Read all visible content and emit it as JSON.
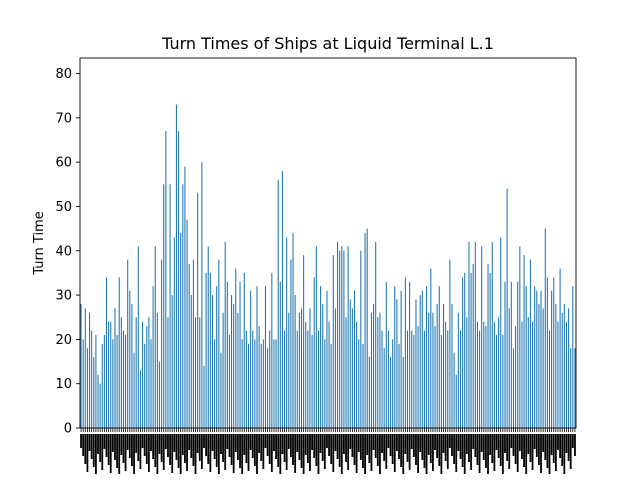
{
  "chart_data": {
    "type": "bar",
    "title": "Turn Times of Ships at Liquid Terminal L.1",
    "xlabel": "",
    "ylabel": "Turn Time",
    "ylim": [
      0,
      83.5
    ],
    "yticks": [
      0,
      10,
      20,
      30,
      40,
      50,
      60,
      70,
      80
    ],
    "grid": false,
    "legend": "none",
    "bar_color": "#1f77b4",
    "values": [
      28,
      20,
      27,
      18,
      26,
      22,
      16,
      21,
      12,
      10,
      19,
      21,
      34,
      24,
      24,
      20,
      27,
      21,
      34,
      25,
      22,
      21,
      38,
      31,
      28,
      17,
      25,
      41,
      13,
      24,
      19,
      23,
      25,
      20,
      32,
      41,
      26,
      15,
      38,
      55,
      67,
      25,
      55,
      30,
      43,
      73,
      67,
      44,
      55,
      59,
      47,
      37,
      30,
      38,
      25,
      53,
      25,
      60,
      14,
      35,
      41,
      35,
      30,
      20,
      32,
      38,
      17,
      26,
      42,
      33,
      21,
      30,
      28,
      36,
      26,
      33,
      20,
      35,
      22,
      19,
      31,
      22,
      20,
      32,
      23,
      19,
      20,
      32,
      18,
      22,
      35,
      20,
      20,
      56,
      33,
      58,
      22,
      43,
      26,
      38,
      44,
      30,
      22,
      26,
      27,
      39,
      24,
      22,
      27,
      21,
      34,
      41,
      22,
      32,
      28,
      20,
      31,
      24,
      19,
      39,
      27,
      42,
      40,
      41,
      40,
      25,
      41,
      29,
      27,
      31,
      24,
      20,
      40,
      19,
      44,
      45,
      16,
      26,
      28,
      42,
      25,
      26,
      22,
      18,
      33,
      22,
      16,
      20,
      32,
      29,
      19,
      31,
      16,
      34,
      22,
      33,
      22,
      21,
      29,
      23,
      30,
      31,
      22,
      32,
      26,
      36,
      26,
      23,
      28,
      32,
      21,
      28,
      24,
      22,
      38,
      28,
      17,
      12,
      26,
      22,
      34,
      35,
      25,
      42,
      35,
      37,
      42,
      24,
      22,
      41,
      24,
      23,
      37,
      35,
      42,
      24,
      21,
      25,
      43,
      21,
      33,
      54,
      27,
      33,
      18,
      23,
      33,
      41,
      24,
      39,
      32,
      25,
      38,
      24,
      32,
      31,
      28,
      31,
      27,
      45,
      34,
      22,
      31,
      34,
      28,
      24,
      36,
      26,
      28,
      24,
      27,
      18,
      32,
      18
    ]
  }
}
